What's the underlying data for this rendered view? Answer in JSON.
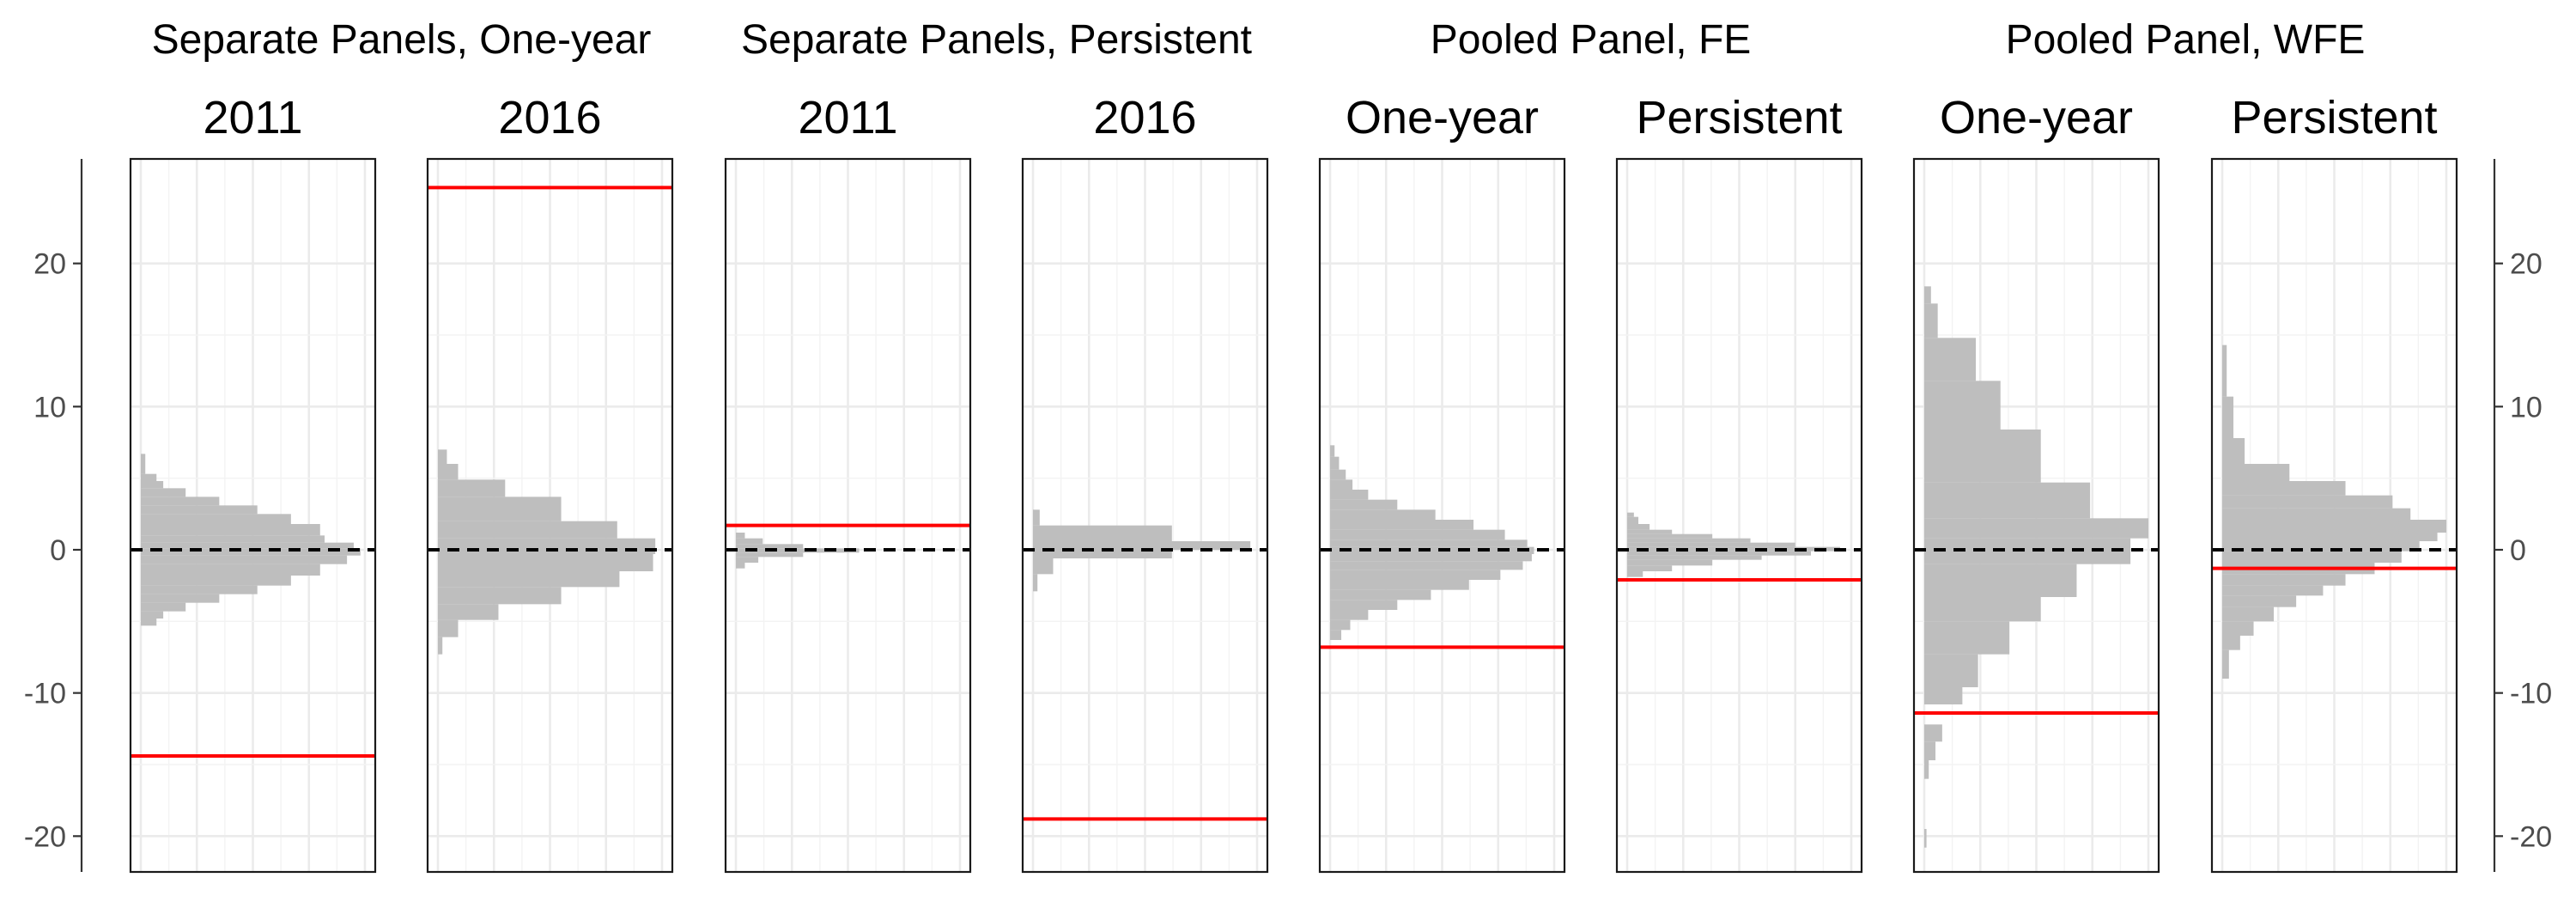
{
  "chart_data": {
    "type": "histogram",
    "orientation": "horizontal",
    "ylim": [
      -22.5,
      27.3
    ],
    "yticks": [
      -20,
      -10,
      0,
      10,
      20
    ],
    "ytick_labels": [
      "-20",
      "-10",
      "0",
      "10",
      "20"
    ],
    "reference_line": 0,
    "groups": [
      {
        "title": "Separate Panels, One-year",
        "panels": [
          0,
          1
        ]
      },
      {
        "title": "Separate Panels, Persistent",
        "panels": [
          2,
          3
        ]
      },
      {
        "title": "Pooled Panel, FE",
        "panels": [
          4,
          5
        ]
      },
      {
        "title": "Pooled Panel, WFE",
        "panels": [
          6,
          7
        ]
      }
    ],
    "panels": [
      {
        "label": "2011",
        "estimate": -14.4,
        "bins": [
          {
            "lo": -5.3,
            "hi": -4.8,
            "count": 0.07
          },
          {
            "lo": -4.8,
            "hi": -4.3,
            "count": 0.1
          },
          {
            "lo": -4.3,
            "hi": -3.7,
            "count": 0.2
          },
          {
            "lo": -3.7,
            "hi": -3.1,
            "count": 0.35
          },
          {
            "lo": -3.1,
            "hi": -2.5,
            "count": 0.52
          },
          {
            "lo": -2.5,
            "hi": -1.8,
            "count": 0.67
          },
          {
            "lo": -1.8,
            "hi": -1.0,
            "count": 0.8
          },
          {
            "lo": -1.0,
            "hi": -0.4,
            "count": 0.92
          },
          {
            "lo": -0.4,
            "hi": 0.1,
            "count": 0.98
          },
          {
            "lo": 0.1,
            "hi": 0.5,
            "count": 0.95
          },
          {
            "lo": 0.5,
            "hi": 1.0,
            "count": 0.82
          },
          {
            "lo": 1.0,
            "hi": 1.8,
            "count": 0.8
          },
          {
            "lo": 1.8,
            "hi": 2.5,
            "count": 0.67
          },
          {
            "lo": 2.5,
            "hi": 3.1,
            "count": 0.52
          },
          {
            "lo": 3.1,
            "hi": 3.7,
            "count": 0.35
          },
          {
            "lo": 3.7,
            "hi": 4.3,
            "count": 0.2
          },
          {
            "lo": 4.3,
            "hi": 4.8,
            "count": 0.1
          },
          {
            "lo": 4.8,
            "hi": 5.3,
            "count": 0.07
          },
          {
            "lo": 5.3,
            "hi": 6.7,
            "count": 0.02
          }
        ]
      },
      {
        "label": "2016",
        "estimate": 25.3,
        "bins": [
          {
            "lo": -7.3,
            "hi": -6.1,
            "count": 0.02
          },
          {
            "lo": -6.1,
            "hi": -4.9,
            "count": 0.09
          },
          {
            "lo": -4.9,
            "hi": -3.8,
            "count": 0.27
          },
          {
            "lo": -3.8,
            "hi": -2.6,
            "count": 0.55
          },
          {
            "lo": -2.6,
            "hi": -1.5,
            "count": 0.81
          },
          {
            "lo": -1.5,
            "hi": -0.3,
            "count": 0.96
          },
          {
            "lo": -0.3,
            "hi": 0.8,
            "count": 0.97
          },
          {
            "lo": 0.8,
            "hi": 2.0,
            "count": 0.8
          },
          {
            "lo": 2.0,
            "hi": 3.7,
            "count": 0.55
          },
          {
            "lo": 3.7,
            "hi": 4.9,
            "count": 0.3
          },
          {
            "lo": 4.9,
            "hi": 6.0,
            "count": 0.09
          },
          {
            "lo": 6.0,
            "hi": 7.0,
            "count": 0.04
          }
        ]
      },
      {
        "label": "2011",
        "estimate": 1.7,
        "bins": [
          {
            "lo": -1.3,
            "hi": -0.9,
            "count": 0.04
          },
          {
            "lo": -0.9,
            "hi": -0.5,
            "count": 0.1
          },
          {
            "lo": -0.5,
            "hi": -0.2,
            "count": 0.3
          },
          {
            "lo": -0.2,
            "hi": 0.1,
            "count": 0.55
          },
          {
            "lo": 0.1,
            "hi": 0.4,
            "count": 0.3
          },
          {
            "lo": 0.4,
            "hi": 0.8,
            "count": 0.12
          },
          {
            "lo": 0.8,
            "hi": 1.2,
            "count": 0.04
          }
        ]
      },
      {
        "label": "2016",
        "estimate": -18.8,
        "bins": [
          {
            "lo": -2.9,
            "hi": -1.7,
            "count": 0.02
          },
          {
            "lo": -1.7,
            "hi": -0.6,
            "count": 0.09
          },
          {
            "lo": -0.6,
            "hi": 0.0,
            "count": 0.62
          },
          {
            "lo": 0.0,
            "hi": 0.6,
            "count": 0.97
          },
          {
            "lo": 0.6,
            "hi": 1.7,
            "count": 0.62
          },
          {
            "lo": 1.7,
            "hi": 2.8,
            "count": 0.03
          }
        ]
      },
      {
        "label": "One-year",
        "estimate": -6.8,
        "bins": [
          {
            "lo": -6.3,
            "hi": -5.6,
            "count": 0.05
          },
          {
            "lo": -5.6,
            "hi": -4.9,
            "count": 0.09
          },
          {
            "lo": -4.9,
            "hi": -4.2,
            "count": 0.17
          },
          {
            "lo": -4.2,
            "hi": -3.5,
            "count": 0.3
          },
          {
            "lo": -3.5,
            "hi": -2.8,
            "count": 0.45
          },
          {
            "lo": -2.8,
            "hi": -2.1,
            "count": 0.62
          },
          {
            "lo": -2.1,
            "hi": -1.4,
            "count": 0.76
          },
          {
            "lo": -1.4,
            "hi": -0.8,
            "count": 0.86
          },
          {
            "lo": -0.8,
            "hi": -0.3,
            "count": 0.9
          },
          {
            "lo": -0.3,
            "hi": 0.2,
            "count": 0.91
          },
          {
            "lo": 0.2,
            "hi": 0.7,
            "count": 0.88
          },
          {
            "lo": 0.7,
            "hi": 1.4,
            "count": 0.78
          },
          {
            "lo": 1.4,
            "hi": 2.1,
            "count": 0.64
          },
          {
            "lo": 2.1,
            "hi": 2.8,
            "count": 0.47
          },
          {
            "lo": 2.8,
            "hi": 3.5,
            "count": 0.3
          },
          {
            "lo": 3.5,
            "hi": 4.2,
            "count": 0.17
          },
          {
            "lo": 4.2,
            "hi": 4.9,
            "count": 0.1
          },
          {
            "lo": 4.9,
            "hi": 5.6,
            "count": 0.07
          },
          {
            "lo": 5.6,
            "hi": 6.5,
            "count": 0.04
          },
          {
            "lo": 6.5,
            "hi": 7.3,
            "count": 0.02
          }
        ]
      },
      {
        "label": "Persistent",
        "estimate": -2.1,
        "bins": [
          {
            "lo": -1.9,
            "hi": -1.5,
            "count": 0.07
          },
          {
            "lo": -1.5,
            "hi": -1.1,
            "count": 0.2
          },
          {
            "lo": -1.1,
            "hi": -0.7,
            "count": 0.38
          },
          {
            "lo": -0.7,
            "hi": -0.4,
            "count": 0.6
          },
          {
            "lo": -0.4,
            "hi": -0.1,
            "count": 0.82
          },
          {
            "lo": -0.1,
            "hi": 0.2,
            "count": 0.95
          },
          {
            "lo": 0.2,
            "hi": 0.5,
            "count": 0.75
          },
          {
            "lo": 0.5,
            "hi": 0.8,
            "count": 0.55
          },
          {
            "lo": 0.8,
            "hi": 1.1,
            "count": 0.38
          },
          {
            "lo": 1.1,
            "hi": 1.4,
            "count": 0.2
          },
          {
            "lo": 1.4,
            "hi": 1.8,
            "count": 0.1
          },
          {
            "lo": 1.8,
            "hi": 2.3,
            "count": 0.05
          },
          {
            "lo": 2.3,
            "hi": 2.6,
            "count": 0.03
          }
        ]
      },
      {
        "label": "One-year",
        "estimate": -11.4,
        "bins": [
          {
            "lo": -20.8,
            "hi": -19.5,
            "count": 0.01
          },
          {
            "lo": -16.0,
            "hi": -14.7,
            "count": 0.02
          },
          {
            "lo": -14.7,
            "hi": -13.4,
            "count": 0.05
          },
          {
            "lo": -13.4,
            "hi": -12.2,
            "count": 0.08
          },
          {
            "lo": -10.8,
            "hi": -9.6,
            "count": 0.17
          },
          {
            "lo": -9.6,
            "hi": -7.3,
            "count": 0.24
          },
          {
            "lo": -7.3,
            "hi": -5.0,
            "count": 0.38
          },
          {
            "lo": -5.0,
            "hi": -3.3,
            "count": 0.52
          },
          {
            "lo": -3.3,
            "hi": -1.0,
            "count": 0.68
          },
          {
            "lo": -1.0,
            "hi": 0.8,
            "count": 0.92
          },
          {
            "lo": 0.8,
            "hi": 2.2,
            "count": 1.0
          },
          {
            "lo": 2.2,
            "hi": 4.7,
            "count": 0.74
          },
          {
            "lo": 4.7,
            "hi": 8.4,
            "count": 0.52
          },
          {
            "lo": 8.4,
            "hi": 11.8,
            "count": 0.34
          },
          {
            "lo": 11.8,
            "hi": 14.8,
            "count": 0.23
          },
          {
            "lo": 14.8,
            "hi": 17.2,
            "count": 0.06
          },
          {
            "lo": 17.2,
            "hi": 18.4,
            "count": 0.03
          }
        ]
      },
      {
        "label": "Persistent",
        "estimate": -1.3,
        "bins": [
          {
            "lo": -9.0,
            "hi": -7.0,
            "count": 0.03
          },
          {
            "lo": -7.0,
            "hi": -6.0,
            "count": 0.08
          },
          {
            "lo": -6.0,
            "hi": -5.0,
            "count": 0.14
          },
          {
            "lo": -5.0,
            "hi": -4.0,
            "count": 0.23
          },
          {
            "lo": -4.0,
            "hi": -3.2,
            "count": 0.33
          },
          {
            "lo": -3.2,
            "hi": -2.5,
            "count": 0.45
          },
          {
            "lo": -2.5,
            "hi": -1.7,
            "count": 0.55
          },
          {
            "lo": -1.7,
            "hi": -0.9,
            "count": 0.68
          },
          {
            "lo": -0.9,
            "hi": -0.1,
            "count": 0.8
          },
          {
            "lo": -0.1,
            "hi": 0.6,
            "count": 0.88
          },
          {
            "lo": 0.6,
            "hi": 1.2,
            "count": 0.96
          },
          {
            "lo": 1.2,
            "hi": 2.1,
            "count": 1.0
          },
          {
            "lo": 2.1,
            "hi": 2.9,
            "count": 0.84
          },
          {
            "lo": 2.9,
            "hi": 3.8,
            "count": 0.76
          },
          {
            "lo": 3.8,
            "hi": 4.8,
            "count": 0.55
          },
          {
            "lo": 4.8,
            "hi": 6.0,
            "count": 0.3
          },
          {
            "lo": 6.0,
            "hi": 7.8,
            "count": 0.1
          },
          {
            "lo": 7.8,
            "hi": 10.7,
            "count": 0.05
          },
          {
            "lo": 10.7,
            "hi": 14.3,
            "count": 0.02
          }
        ]
      }
    ]
  },
  "colors": {
    "histogram_fill": "#bebebe",
    "estimate_line": "#ff0000",
    "reference_line": "#000000"
  }
}
